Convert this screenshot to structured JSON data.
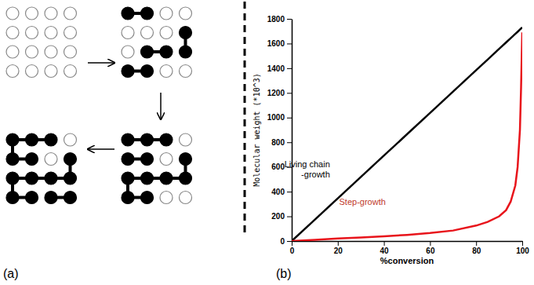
{
  "diagram": {
    "label": "(a)",
    "rows": 4,
    "cols": 4,
    "stages": [
      {
        "cells": [
          [
            0,
            0,
            0,
            0
          ],
          [
            0,
            0,
            0,
            0
          ],
          [
            0,
            0,
            0,
            0
          ],
          [
            0,
            0,
            0,
            0
          ]
        ],
        "bonds": []
      },
      {
        "cells": [
          [
            1,
            1,
            0,
            0
          ],
          [
            0,
            0,
            0,
            1
          ],
          [
            0,
            1,
            1,
            1
          ],
          [
            1,
            1,
            0,
            0
          ]
        ],
        "bonds": [
          [
            0,
            0,
            0,
            1
          ],
          [
            1,
            3,
            2,
            3
          ],
          [
            2,
            1,
            2,
            2
          ],
          [
            3,
            0,
            3,
            1
          ]
        ]
      },
      {
        "cells": [
          [
            1,
            1,
            1,
            0
          ],
          [
            1,
            1,
            0,
            1
          ],
          [
            1,
            1,
            1,
            1
          ],
          [
            1,
            1,
            0,
            0
          ]
        ],
        "bonds": [
          [
            0,
            0,
            0,
            1
          ],
          [
            0,
            1,
            0,
            2
          ],
          [
            1,
            0,
            1,
            1
          ],
          [
            1,
            3,
            2,
            3
          ],
          [
            2,
            0,
            2,
            1
          ],
          [
            2,
            1,
            2,
            2
          ],
          [
            2,
            2,
            2,
            3
          ],
          [
            2,
            0,
            3,
            0
          ],
          [
            3,
            0,
            3,
            1
          ]
        ]
      },
      {
        "cells": [
          [
            1,
            1,
            1,
            0
          ],
          [
            1,
            1,
            0,
            1
          ],
          [
            1,
            1,
            1,
            1
          ],
          [
            1,
            1,
            1,
            1
          ]
        ],
        "bonds": [
          [
            0,
            0,
            0,
            1
          ],
          [
            0,
            1,
            0,
            2
          ],
          [
            0,
            0,
            1,
            0
          ],
          [
            1,
            0,
            1,
            1
          ],
          [
            1,
            3,
            2,
            3
          ],
          [
            2,
            0,
            2,
            1
          ],
          [
            2,
            1,
            2,
            2
          ],
          [
            2,
            2,
            2,
            3
          ],
          [
            2,
            0,
            3,
            0
          ],
          [
            3,
            0,
            3,
            1
          ],
          [
            3,
            2,
            3,
            3
          ]
        ]
      }
    ]
  },
  "chart_label": "(b)",
  "chart_data": {
    "type": "line",
    "x_label": "%conversion",
    "y_label": "Molecular weight (*10^3)",
    "x": [
      0,
      10,
      20,
      30,
      40,
      50,
      60,
      70,
      80,
      85,
      90,
      93,
      95,
      97,
      98,
      99,
      99.5,
      100
    ],
    "series": [
      {
        "name": "Living chain -growth",
        "color": "#000000",
        "line_style": "solid",
        "values": [
          0,
          173,
          346,
          519,
          692,
          865,
          1038,
          1211,
          1384,
          1470,
          1557,
          1609,
          1643,
          1678,
          1695,
          1713,
          1722,
          1730
        ]
      },
      {
        "name": "Step-growth",
        "color": "#e8141b",
        "line_style": "solid",
        "values": [
          0,
          10,
          20,
          28,
          38,
          50,
          65,
          85,
          125,
          155,
          200,
          250,
          320,
          450,
          600,
          900,
          1250,
          1690
        ]
      }
    ],
    "xlim": [
      0,
      100
    ],
    "xticks": [
      0,
      20,
      40,
      60,
      80,
      100
    ],
    "ylim": [
      0,
      1800
    ],
    "yticks": [
      0,
      200,
      400,
      600,
      800,
      1000,
      1200,
      1400,
      1600,
      1800
    ],
    "grid": false
  }
}
